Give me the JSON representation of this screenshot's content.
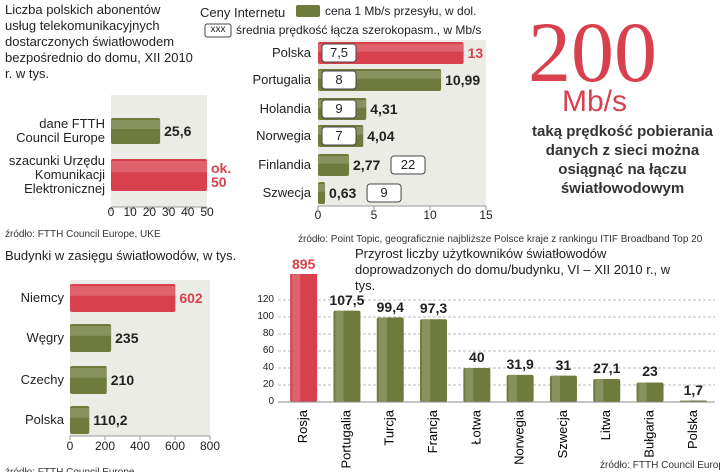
{
  "chart_data": [
    {
      "type": "bar",
      "orientation": "horizontal",
      "title": "Liczba polskich abonentów usług telekomunikacyjnych dostarczonych światłowodem bezpośrednio do domu, XII 2010 r. w tys.",
      "categories": [
        "dane FTTH Council Europe",
        "szacunki Urzędu Komunikacji Elektronicznej"
      ],
      "values": [
        25.6,
        50
      ],
      "value_labels": [
        "25,6",
        "ok. 50"
      ],
      "color": "#6e7b3c",
      "colors": [
        "#6e7b3c",
        "#d8404e"
      ],
      "xlim": [
        0,
        50
      ],
      "xticks": [
        0,
        10,
        20,
        30,
        40,
        50
      ],
      "source": "źródło: FTTH Council Europe, UKE"
    },
    {
      "type": "bar",
      "orientation": "horizontal",
      "title": "Ceny Internetu",
      "categories": [
        "Polska",
        "Portugalia",
        "Holandia",
        "Norwegia",
        "Finlandia",
        "Szwecja"
      ],
      "series": [
        {
          "name": "cena 1 Mb/s przesyłu, w dol.",
          "color": "#6e7b3c",
          "colors": [
            "#d8404e",
            "#6e7b3c",
            "#6e7b3c",
            "#6e7b3c",
            "#6e7b3c",
            "#6e7b3c"
          ],
          "values": [
            13,
            10.99,
            4.31,
            4.04,
            2.77,
            0.63
          ],
          "value_labels": [
            "13",
            "10,99",
            "4,31",
            "4,04",
            "2,77",
            "0,63"
          ]
        },
        {
          "name": "średnia prędkość łącza szerokopasm., w Mb/s",
          "color": "#ffffff",
          "values": [
            7.5,
            8,
            9,
            7,
            22,
            9
          ],
          "value_labels": [
            "7,5",
            "8",
            "9",
            "7",
            "22",
            "9"
          ]
        }
      ],
      "legend_sample": "xxx",
      "xlim": [
        0,
        15
      ],
      "xticks": [
        0,
        5,
        10,
        15
      ],
      "source": "źródło: Point Topic, geograficznie najbliższe Polsce kraje z rankingu ITIF Broadband Top 20"
    },
    {
      "type": "bar",
      "orientation": "horizontal",
      "title": "Budynki w zasięgu światłowodów, w tys.",
      "categories": [
        "Niemcy",
        "Węgry",
        "Czechy",
        "Polska"
      ],
      "values": [
        602,
        235,
        210,
        110.2
      ],
      "value_labels": [
        "602",
        "235",
        "210",
        "110,2"
      ],
      "color": "#6e7b3c",
      "colors": [
        "#d8404e",
        "#6e7b3c",
        "#6e7b3c",
        "#6e7b3c"
      ],
      "xlim": [
        0,
        800
      ],
      "xticks": [
        0,
        200,
        400,
        600,
        800
      ],
      "source": "źródło: FTTH Council Europe"
    },
    {
      "type": "bar",
      "orientation": "vertical",
      "title": "Przyrost liczby użytkowników światłowodów doprowadzonych do domu/budynku, VI – XII 2010 r., w tys.",
      "categories": [
        "Rosja",
        "Portugalia",
        "Turcja",
        "Francja",
        "Łotwa",
        "Norwegia",
        "Szwecja",
        "Litwa",
        "Bułgaria",
        "Polska"
      ],
      "values": [
        895,
        107.5,
        99.4,
        97.3,
        40,
        31.9,
        31,
        27.1,
        23,
        1.7
      ],
      "value_labels": [
        "895",
        "107,5",
        "99,4",
        "97,3",
        "40",
        "31,9",
        "31",
        "27,1",
        "23",
        "1,7"
      ],
      "color": "#6e7b3c",
      "colors": [
        "#d8404e",
        "#6e7b3c",
        "#6e7b3c",
        "#6e7b3c",
        "#6e7b3c",
        "#6e7b3c",
        "#6e7b3c",
        "#6e7b3c",
        "#6e7b3c",
        "#6e7b3c"
      ],
      "ylim": [
        0,
        150
      ],
      "yticks": [
        0,
        20,
        40,
        60,
        80,
        100,
        120
      ],
      "grid": true,
      "source": "źródło: FTTH Council Europe"
    }
  ],
  "highlight": {
    "number": "200",
    "unit": "Mb/s",
    "text": "taką prędkość pobierania danych z sieci można osiągnąć na łączu światłowodowym"
  }
}
